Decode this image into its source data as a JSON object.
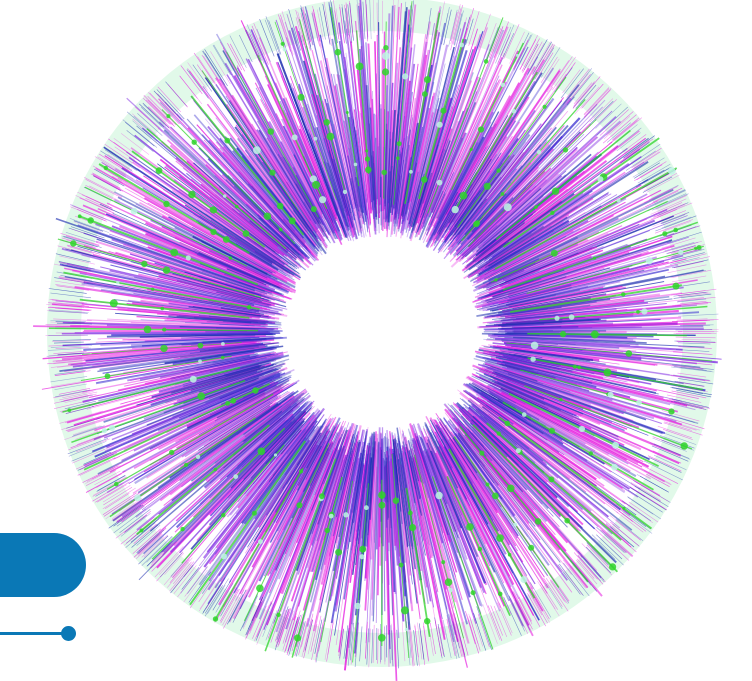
{
  "artwork": {
    "icon": "radial-burst-graphic",
    "colors": {
      "magenta": "#e61fe0",
      "violet": "#8a3de6",
      "indigo": "#3a2fd0",
      "navy": "#1e2fb0",
      "green": "#2fd42a",
      "mint": "#d9f7e4",
      "white": "#ffffff"
    }
  },
  "decoration": {
    "accent_color": "#0a78b6",
    "pill_icon": "rounded-tab-shape",
    "line_icon": "line-with-dot"
  }
}
